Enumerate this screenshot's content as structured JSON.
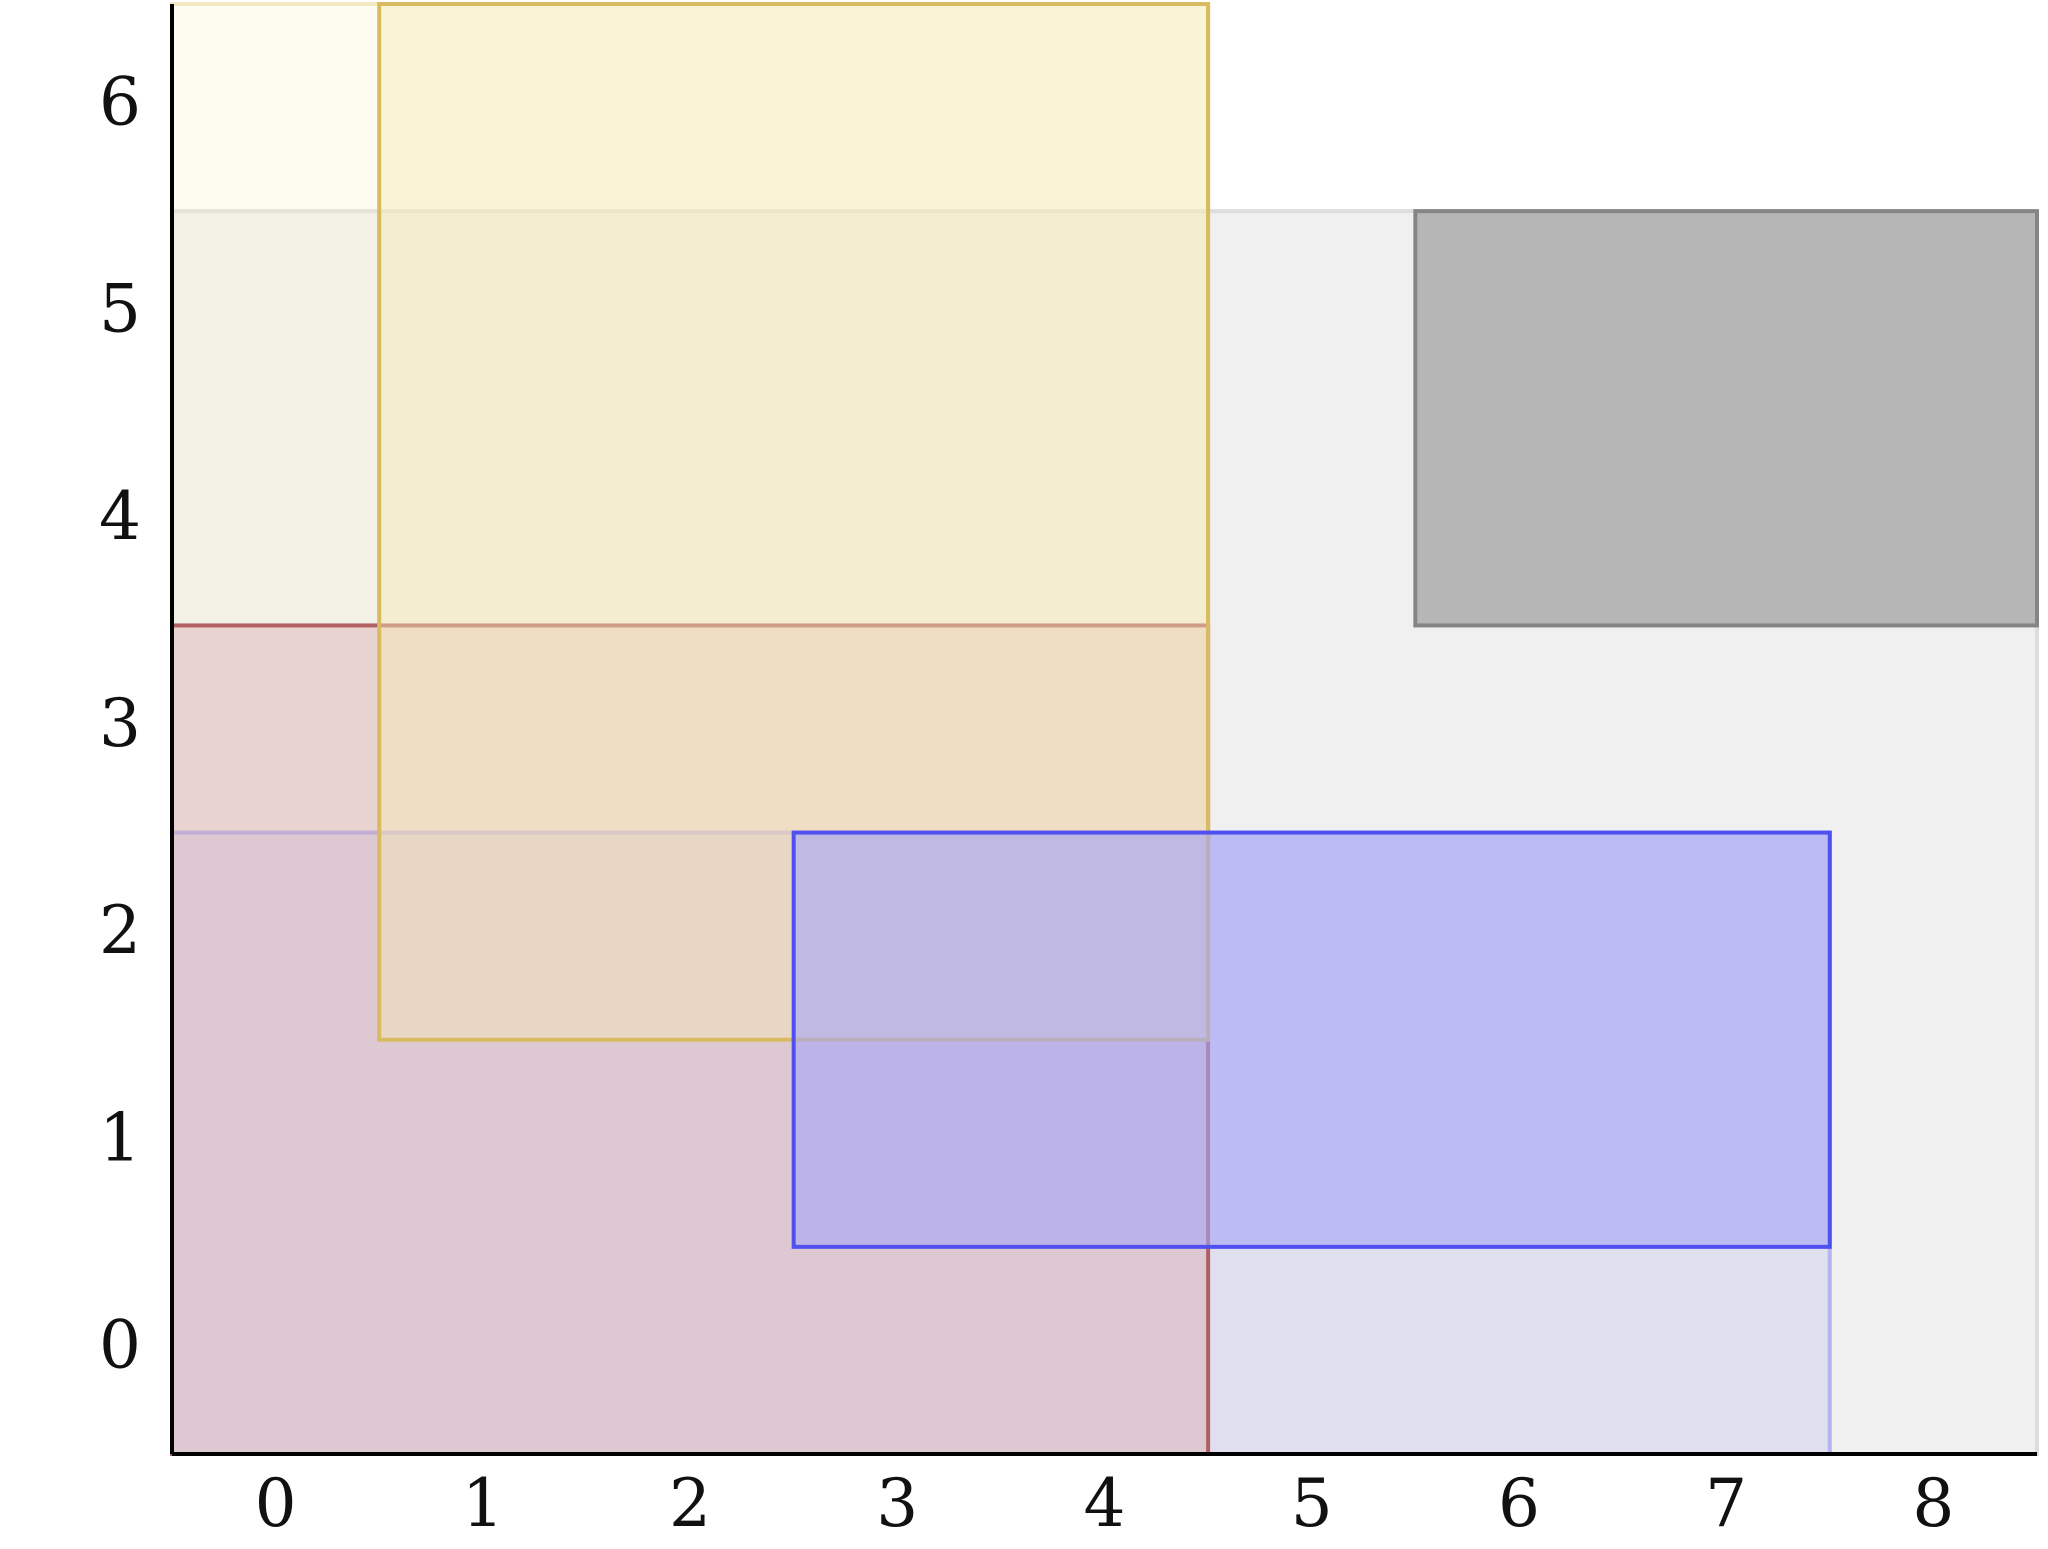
{
  "chart_data": {
    "type": "rect",
    "xlim": [
      -0.5,
      8.5
    ],
    "ylim": [
      -0.5,
      6.5
    ],
    "xticks": [
      0,
      1,
      2,
      3,
      4,
      5,
      6,
      7,
      8
    ],
    "yticks": [
      0,
      1,
      2,
      3,
      4,
      5,
      6
    ],
    "rects": [
      {
        "x": [
          -0.5,
          8.5
        ],
        "y": [
          -0.5,
          5.5
        ],
        "fill": "#f0f0f0",
        "stroke": "#dddddd",
        "opacity": 1
      },
      {
        "x": [
          -0.5,
          4.5
        ],
        "y": [
          -0.5,
          6.5
        ],
        "fill": "#fdf3cf",
        "stroke": "#f3e8c0",
        "opacity": 0.3
      },
      {
        "x": [
          -0.5,
          7.5
        ],
        "y": [
          -0.5,
          2.5
        ],
        "fill": "#c6c6f0",
        "stroke": "#b4b4ee",
        "opacity": 0.4
      },
      {
        "x": [
          -0.5,
          4.5
        ],
        "y": [
          -0.5,
          3.5
        ],
        "fill": "#d9a8b0",
        "stroke": "#b06060",
        "opacity": 0.4
      },
      {
        "x": [
          0.5,
          4.5
        ],
        "y": [
          1.5,
          6.5
        ],
        "fill": "#f7e9b5",
        "stroke": "#d8bb60",
        "opacity": 0.45
      },
      {
        "x": [
          2.5,
          7.5
        ],
        "y": [
          0.5,
          2.5
        ],
        "fill": "#a5a5f8",
        "stroke": "#5050f0",
        "opacity": 0.6
      },
      {
        "x": [
          5.5,
          8.5
        ],
        "y": [
          3.5,
          5.5
        ],
        "fill": "#b6b6b6",
        "stroke": "#858585",
        "opacity": 1
      }
    ]
  }
}
